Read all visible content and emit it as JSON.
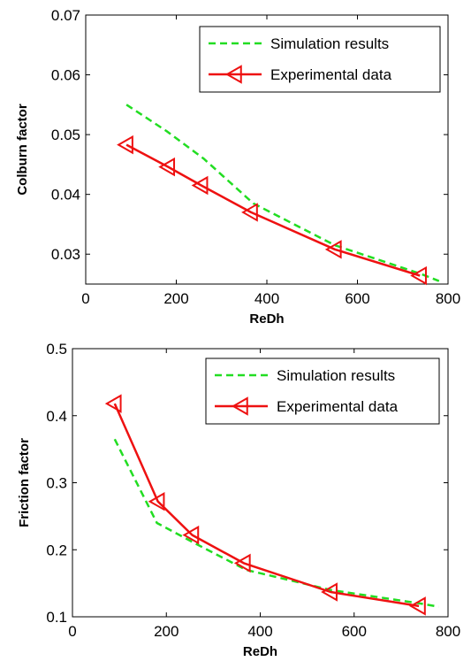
{
  "chart_data": [
    {
      "type": "line",
      "title": "",
      "xlabel": "ReDh",
      "ylabel": "Colburn factor",
      "xlim": [
        0,
        800
      ],
      "ylim": [
        0.025,
        0.07
      ],
      "xticks": [
        0,
        200,
        400,
        600,
        800
      ],
      "yticks": [
        0.03,
        0.04,
        0.05,
        0.06,
        0.07
      ],
      "xtick_labels": [
        "0",
        "200",
        "400",
        "600",
        "800"
      ],
      "ytick_labels": [
        "0.03",
        "0.04",
        "0.05",
        "0.06",
        "0.07"
      ],
      "grid": false,
      "legend_position": "top-right",
      "series": [
        {
          "name": "Simulation results",
          "color": "#22dd22",
          "style": "dashed",
          "x": [
            90,
            180,
            260,
            370,
            550,
            740,
            780
          ],
          "y": [
            0.055,
            0.0505,
            0.046,
            0.0385,
            0.0315,
            0.0267,
            0.0255
          ]
        },
        {
          "name": "Experimental data",
          "color": "#ee1111",
          "style": "solid",
          "marker": "triangle-left",
          "x": [
            90,
            182,
            255,
            365,
            550,
            738
          ],
          "y": [
            0.0483,
            0.0446,
            0.0415,
            0.037,
            0.0308,
            0.0264
          ]
        }
      ]
    },
    {
      "type": "line",
      "title": "",
      "xlabel": "ReDh",
      "ylabel": "Friction factor",
      "xlim": [
        0,
        800
      ],
      "ylim": [
        0.1,
        0.5
      ],
      "xticks": [
        0,
        200,
        400,
        600,
        800
      ],
      "yticks": [
        0.1,
        0.2,
        0.3,
        0.4,
        0.5
      ],
      "xtick_labels": [
        "0",
        "200",
        "400",
        "600",
        "800"
      ],
      "ytick_labels": [
        "0.1",
        "0.2",
        "0.3",
        "0.4",
        "0.5"
      ],
      "grid": false,
      "legend_position": "top-right",
      "series": [
        {
          "name": "Simulation results",
          "color": "#22dd22",
          "style": "dashed",
          "x": [
            90,
            180,
            260,
            370,
            550,
            740,
            780
          ],
          "y": [
            0.365,
            0.24,
            0.21,
            0.17,
            0.14,
            0.12,
            0.115
          ]
        },
        {
          "name": "Experimental data",
          "color": "#ee1111",
          "style": "solid",
          "marker": "triangle-left",
          "x": [
            90,
            182,
            255,
            365,
            550,
            738
          ],
          "y": [
            0.418,
            0.272,
            0.222,
            0.18,
            0.137,
            0.116
          ]
        }
      ]
    }
  ]
}
